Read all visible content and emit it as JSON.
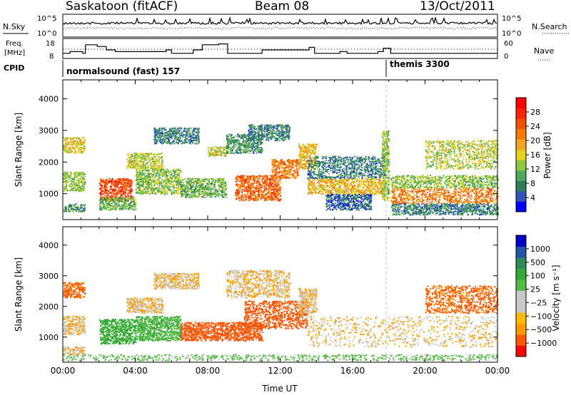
{
  "header": {
    "station": "Saskatoon (fitACF)",
    "beam": "Beam 08",
    "date": "13/Oct/2011"
  },
  "colors": {
    "axis": "#000000",
    "power_scale": [
      "#0000ff",
      "#3355bb",
      "#2e7d5a",
      "#4daa5a",
      "#8ec63f",
      "#e6d21a",
      "#f5a623",
      "#f57c00",
      "#f24f00",
      "#ff2200",
      "#ff0000"
    ],
    "velocity_scale": [
      "#ff0000",
      "#ff5500",
      "#ff9900",
      "#ffbb00",
      "#c8c8c8",
      "#c8c8c8",
      "#55bb44",
      "#33aa33",
      "#2e8b57",
      "#2255aa",
      "#0000cc"
    ]
  },
  "chart_data": [
    {
      "type": "line",
      "name": "summary-nsky",
      "left_label": "N.Sky",
      "right_label": "N.Search",
      "left_ticks": [
        "10^5",
        "10^0"
      ],
      "right_ticks": [
        "10^5",
        "10^0"
      ]
    },
    {
      "type": "line",
      "name": "summary-freq",
      "left_label_1": "Freq.",
      "left_label_2": "[MHz]",
      "right_label": "Nave",
      "left_ticks": [
        "18",
        "8"
      ],
      "right_ticks": [
        "60",
        "0"
      ],
      "freq_ylim": [
        8,
        18
      ],
      "freq_steps": [
        {
          "t": 0.0,
          "v": 11
        },
        {
          "t": 0.4,
          "v": 12
        },
        {
          "t": 1.1,
          "v": 11
        },
        {
          "t": 1.25,
          "v": 16
        },
        {
          "t": 1.9,
          "v": 15
        },
        {
          "t": 2.4,
          "v": 13
        },
        {
          "t": 2.9,
          "v": 12
        },
        {
          "t": 5.7,
          "v": 13
        },
        {
          "t": 6.0,
          "v": 11
        },
        {
          "t": 7.2,
          "v": 13
        },
        {
          "t": 7.7,
          "v": 16
        },
        {
          "t": 8.6,
          "v": 16.5
        },
        {
          "t": 9.1,
          "v": 11
        },
        {
          "t": 11.0,
          "v": 13
        },
        {
          "t": 13.6,
          "v": 14.5
        },
        {
          "t": 13.9,
          "v": 11
        },
        {
          "t": 15.3,
          "v": 12
        },
        {
          "t": 15.7,
          "v": 11
        },
        {
          "t": 17.4,
          "v": 12
        },
        {
          "t": 17.7,
          "v": 14
        },
        {
          "t": 18.1,
          "v": 11
        },
        {
          "t": 24.0,
          "v": 11
        }
      ]
    },
    {
      "type": "table",
      "name": "cpid",
      "label": "CPID",
      "entries": [
        {
          "start_hour": 0,
          "text": "normalsound (fast) 157"
        },
        {
          "start_hour": 18,
          "text": "themis 3300"
        }
      ]
    },
    {
      "type": "heatmap",
      "name": "power",
      "ylabel": "Slant Range [km]",
      "xlim": [
        0,
        24
      ],
      "ylim": [
        180,
        4600
      ],
      "yticks": [
        1000,
        2000,
        3000,
        4000
      ],
      "colorbar_label": "Power [dB]",
      "colorbar_ticks": [
        "28",
        "24",
        "20",
        "16",
        "12",
        "8",
        "4"
      ],
      "colorbar_range": [
        0,
        32
      ],
      "blobs": [
        {
          "t0": 0.0,
          "t1": 1.2,
          "r0": 2300,
          "r1": 2800,
          "v": 18
        },
        {
          "t0": 0.0,
          "t1": 1.2,
          "r0": 1100,
          "r1": 1700,
          "v": 14
        },
        {
          "t0": 0.0,
          "t1": 1.2,
          "r0": 450,
          "r1": 700,
          "v": 10
        },
        {
          "t0": 2.0,
          "t1": 3.8,
          "r0": 800,
          "r1": 1500,
          "v": 28
        },
        {
          "t0": 2.0,
          "t1": 4.0,
          "r0": 500,
          "r1": 900,
          "v": 12
        },
        {
          "t0": 4.0,
          "t1": 6.5,
          "r0": 1000,
          "r1": 1800,
          "v": 14
        },
        {
          "t0": 3.5,
          "t1": 5.5,
          "r0": 1800,
          "r1": 2300,
          "v": 16
        },
        {
          "t0": 5.0,
          "t1": 7.5,
          "r0": 2600,
          "r1": 3100,
          "v": 8
        },
        {
          "t0": 6.5,
          "t1": 9.0,
          "r0": 900,
          "r1": 1500,
          "v": 12
        },
        {
          "t0": 8.0,
          "t1": 9.0,
          "r0": 2200,
          "r1": 2500,
          "v": 16
        },
        {
          "t0": 9.0,
          "t1": 11.0,
          "r0": 2300,
          "r1": 2900,
          "v": 10
        },
        {
          "t0": 10.2,
          "t1": 12.5,
          "r0": 2700,
          "r1": 3200,
          "v": 8
        },
        {
          "t0": 9.5,
          "t1": 12.0,
          "r0": 800,
          "r1": 1600,
          "v": 26
        },
        {
          "t0": 11.5,
          "t1": 13.0,
          "r0": 1500,
          "r1": 2100,
          "v": 24
        },
        {
          "t0": 13.0,
          "t1": 14.0,
          "r0": 1800,
          "r1": 2600,
          "v": 20
        },
        {
          "t0": 13.5,
          "t1": 17.8,
          "r0": 1000,
          "r1": 1500,
          "v": 20
        },
        {
          "t0": 13.5,
          "t1": 17.8,
          "r0": 1500,
          "r1": 2200,
          "v": 8
        },
        {
          "t0": 14.5,
          "t1": 17.0,
          "r0": 500,
          "r1": 1000,
          "v": 6
        },
        {
          "t0": 18.1,
          "t1": 24.0,
          "r0": 700,
          "r1": 1200,
          "v": 24
        },
        {
          "t0": 18.1,
          "t1": 24.0,
          "r0": 1200,
          "r1": 1600,
          "v": 14
        },
        {
          "t0": 18.1,
          "t1": 24.0,
          "r0": 350,
          "r1": 700,
          "v": 8
        },
        {
          "t0": 20.0,
          "t1": 24.0,
          "r0": 1800,
          "r1": 2700,
          "v": 16
        },
        {
          "t0": 17.6,
          "t1": 18.0,
          "r0": 800,
          "r1": 3000,
          "v": 14
        }
      ]
    },
    {
      "type": "heatmap",
      "name": "velocity",
      "xlabel": "Time UT",
      "ylabel": "Slant Range [km]",
      "xlim": [
        0,
        24
      ],
      "ylim": [
        180,
        4600
      ],
      "yticks": [
        1000,
        2000,
        3000,
        4000
      ],
      "xticks": [
        "00:00",
        "04:00",
        "08:00",
        "12:00",
        "16:00",
        "20:00",
        "00:00"
      ],
      "colorbar_label": "Velocity [m s⁻¹]",
      "colorbar_ticks": [
        "1000",
        "500",
        "100",
        "25",
        "−25",
        "−100",
        "−500",
        "−1000"
      ],
      "blobs": [
        {
          "t0": 0.0,
          "t1": 1.2,
          "r0": 2300,
          "r1": 2800,
          "v": -150
        },
        {
          "t0": 0.0,
          "t1": 1.2,
          "r0": 1100,
          "r1": 1700,
          "v": 0
        },
        {
          "t0": 0.0,
          "t1": 1.2,
          "r0": 450,
          "r1": 700,
          "v": 0
        },
        {
          "t0": 2.0,
          "t1": 4.0,
          "r0": 800,
          "r1": 1600,
          "v": 400
        },
        {
          "t0": 4.0,
          "t1": 6.5,
          "r0": 900,
          "r1": 1700,
          "v": 300
        },
        {
          "t0": 3.5,
          "t1": 5.5,
          "r0": 1800,
          "r1": 2300,
          "v": 0
        },
        {
          "t0": 5.0,
          "t1": 7.5,
          "r0": 2600,
          "r1": 3100,
          "v": 0
        },
        {
          "t0": 6.5,
          "t1": 9.0,
          "r0": 900,
          "r1": 1500,
          "v": -300
        },
        {
          "t0": 9.0,
          "t1": 11.0,
          "r0": 900,
          "r1": 1500,
          "v": -400
        },
        {
          "t0": 10.0,
          "t1": 13.5,
          "r0": 1300,
          "r1": 2200,
          "v": -300
        },
        {
          "t0": 9.0,
          "t1": 12.5,
          "r0": 2300,
          "r1": 3200,
          "v": 0
        },
        {
          "t0": 13.0,
          "t1": 14.0,
          "r0": 1800,
          "r1": 2600,
          "v": 0
        },
        {
          "t0": 13.5,
          "t1": 24.0,
          "r0": 700,
          "r1": 1700,
          "v": 0
        },
        {
          "t0": 20.0,
          "t1": 24.0,
          "r0": 1800,
          "r1": 2700,
          "v": -150
        },
        {
          "t0": 0.0,
          "t1": 24.0,
          "r0": 250,
          "r1": 450,
          "v": 150
        }
      ]
    }
  ]
}
